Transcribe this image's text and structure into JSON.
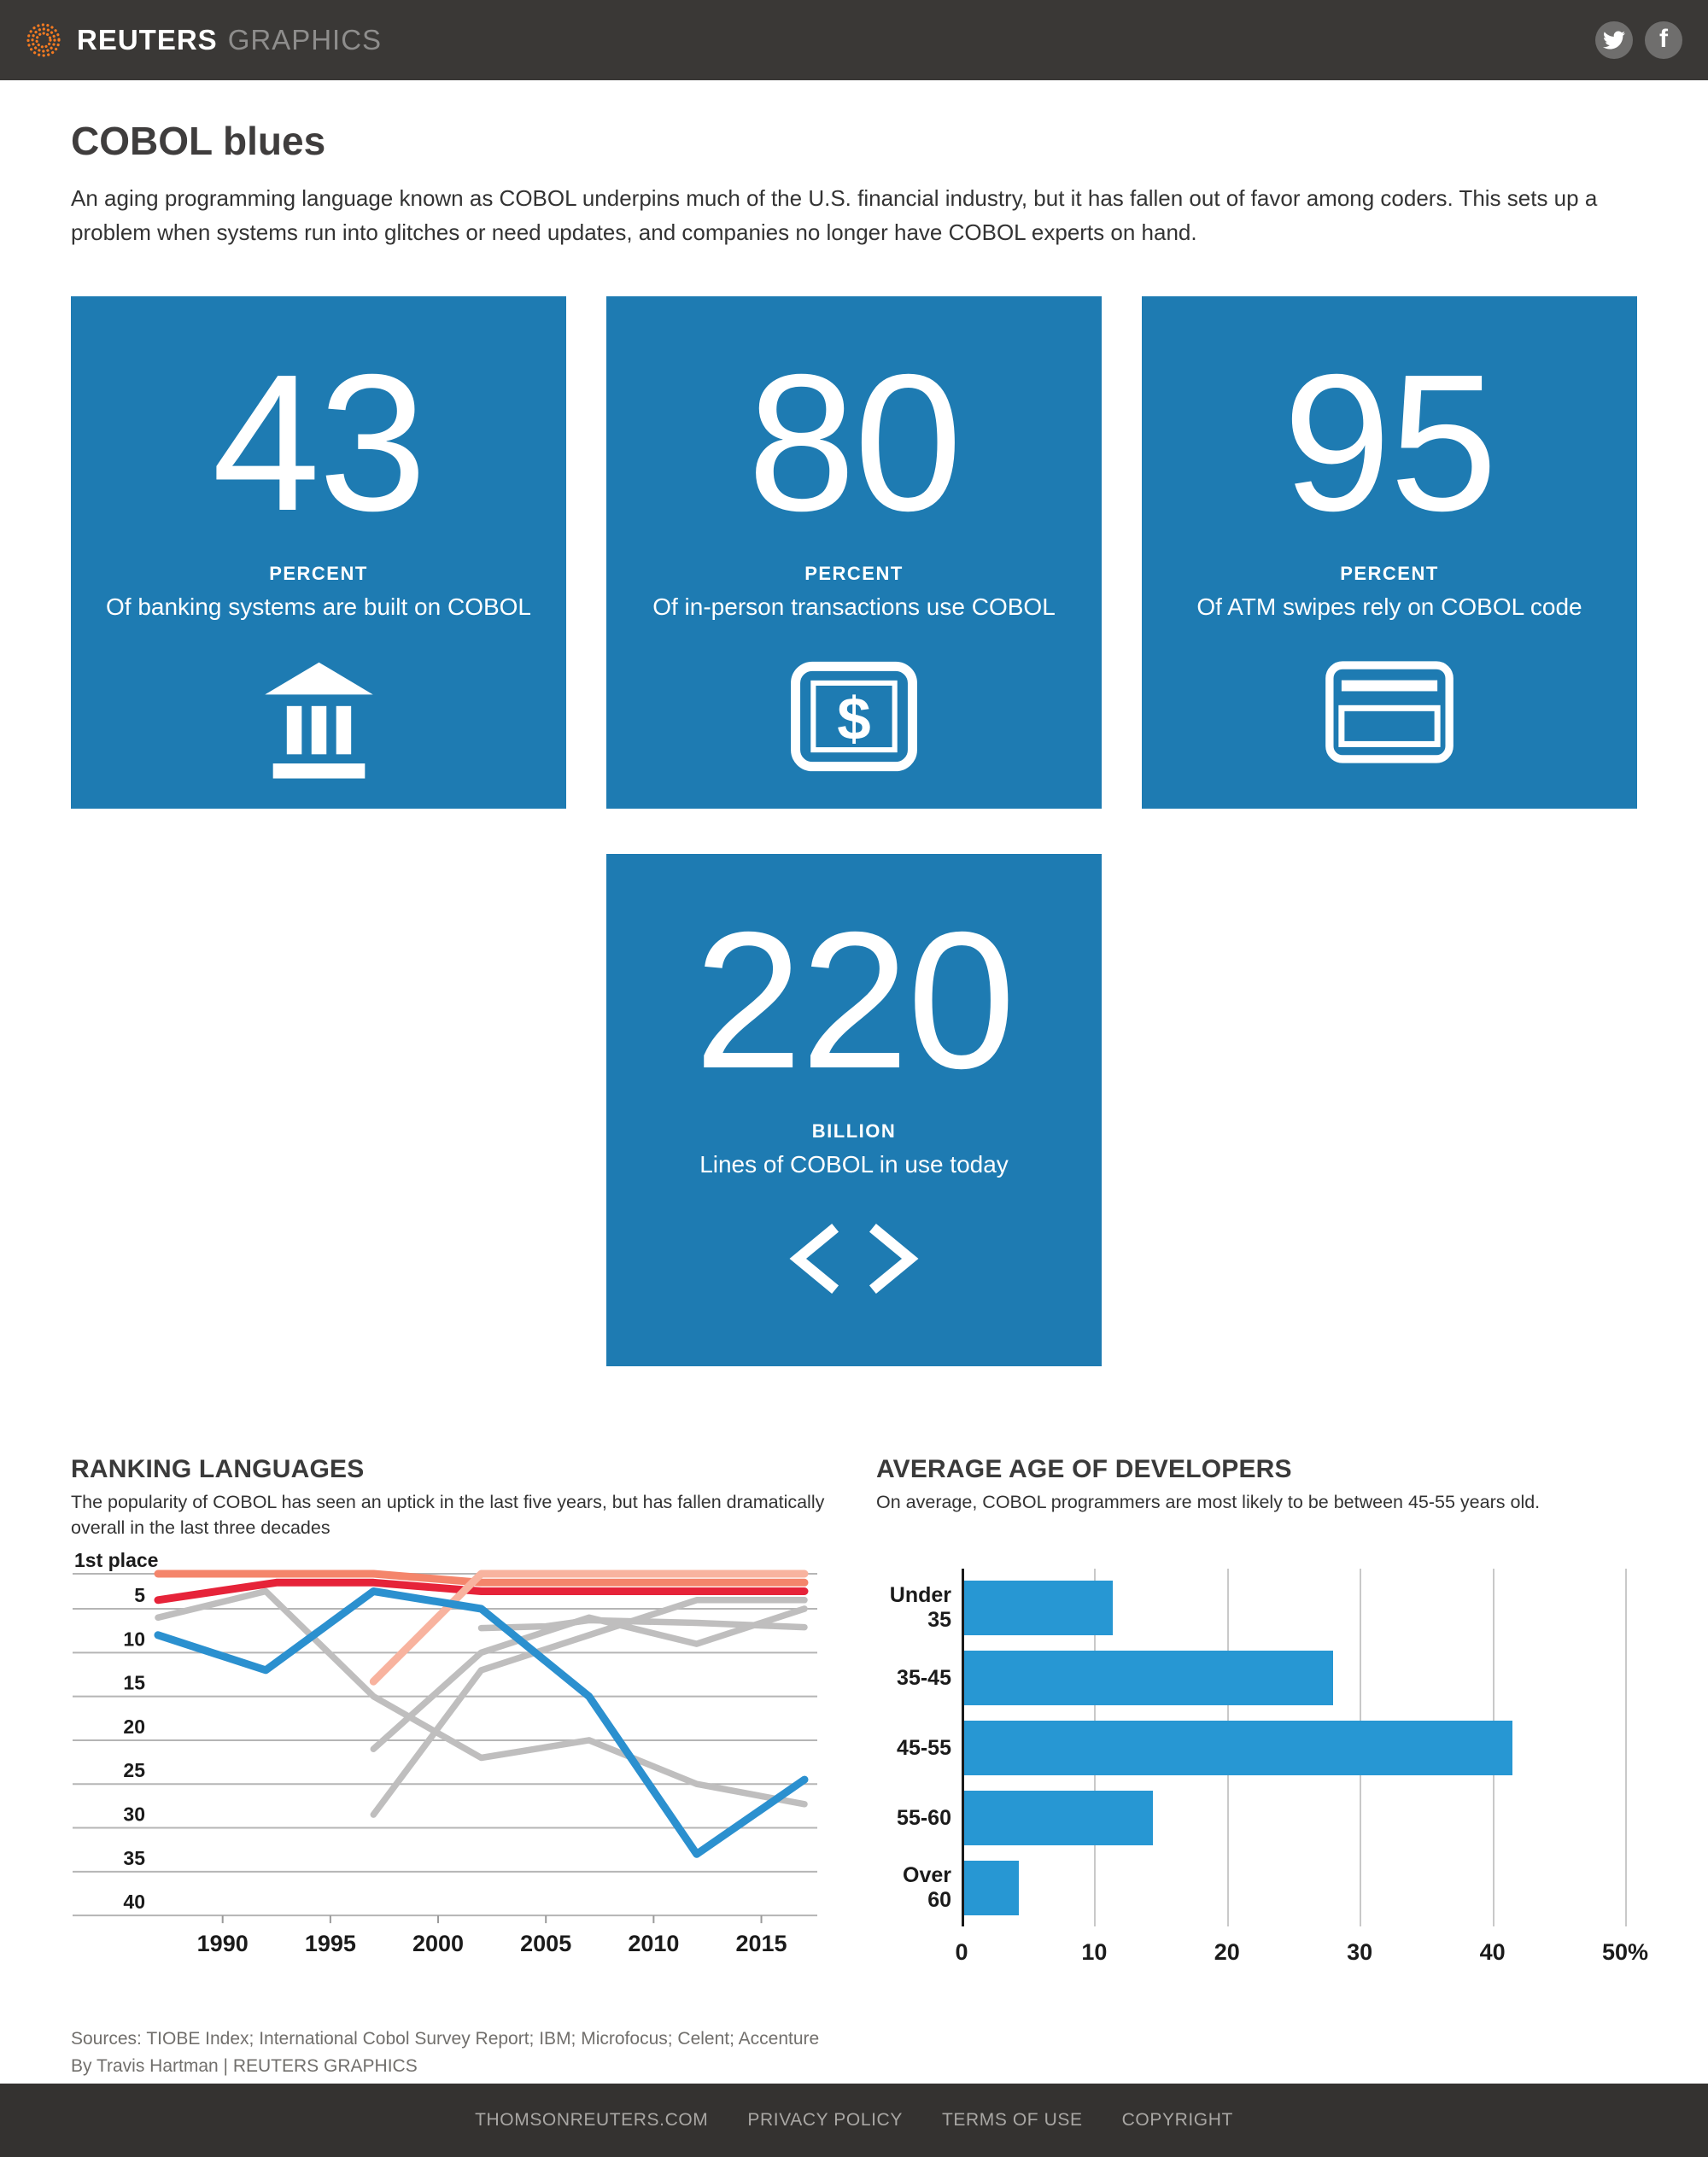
{
  "header": {
    "brand": "REUTERS",
    "brand_suffix": "GRAPHICS"
  },
  "article": {
    "title": "COBOL blues",
    "lede": "An aging programming language known as COBOL underpins much of the U.S. financial industry, but it has fallen out of favor among coders. This sets up a problem when systems run into glitches or need updates, and companies no longer have COBOL experts on hand."
  },
  "colors": {
    "card_blue": "#1e7bb2",
    "bar_blue": "#2797d3",
    "cobol_line_blue": "#2b90cf",
    "red_line": "#e62339",
    "salmon": "#f4856b",
    "light_salmon": "#f8b39f",
    "gray_line": "#bfbebe",
    "header_bg": "#3a3836",
    "footer_bg": "#343230",
    "logo_orange": "#f37a21"
  },
  "stat_cards": [
    {
      "value": "43",
      "unit": "PERCENT",
      "desc": "Of banking systems are built on COBOL",
      "icon": "bank-icon"
    },
    {
      "value": "80",
      "unit": "PERCENT",
      "desc": "Of in-person transactions use COBOL",
      "icon": "dollar-bill-icon"
    },
    {
      "value": "95",
      "unit": "PERCENT",
      "desc": "Of ATM swipes rely on COBOL code",
      "icon": "credit-card-icon"
    },
    {
      "value": "220",
      "unit": "BILLION",
      "desc": "Lines of COBOL in use today",
      "icon": "code-brackets-icon"
    }
  ],
  "charts": {
    "ranking": {
      "title": "RANKING LANGUAGES",
      "subtitle": "The popularity of COBOL has seen an uptick in the last five years, but has fallen dramatically overall in the last three decades",
      "chart_data": {
        "type": "line",
        "x_range": [
          1987,
          2017
        ],
        "y_range": [
          1,
          40
        ],
        "y_axis_inverted_rank": true,
        "grid": true,
        "legend": "none",
        "yticks": [
          {
            "label": "1st place",
            "value": 1
          },
          {
            "label": "5",
            "value": 5
          },
          {
            "label": "10",
            "value": 10
          },
          {
            "label": "15",
            "value": 15
          },
          {
            "label": "20",
            "value": 20
          },
          {
            "label": "25",
            "value": 25
          },
          {
            "label": "30",
            "value": 30
          },
          {
            "label": "35",
            "value": 35
          },
          {
            "label": "40",
            "value": 40
          }
        ],
        "xticks": [
          1990,
          1995,
          2000,
          2005,
          2010,
          2015
        ],
        "series": [
          {
            "name": "gray-language-1",
            "color": "#bfbebe",
            "width": 7.5,
            "x": [
              1987,
              1992,
              1997,
              2002,
              2007,
              2012,
              2017
            ],
            "ranks": [
              6,
              3,
              15,
              22,
              20,
              25,
              27.3
            ]
          },
          {
            "name": "gray-language-2",
            "color": "#bfbebe",
            "width": 7.5,
            "x": [
              1997,
              2002,
              2012,
              2017
            ],
            "ranks": [
              28.5,
              12,
              4,
              4
            ]
          },
          {
            "name": "gray-language-3",
            "color": "#bfbebe",
            "width": 7.5,
            "x": [
              1997,
              2002,
              2007,
              2012,
              2017
            ],
            "ranks": [
              21,
              10,
              6,
              9,
              5
            ]
          },
          {
            "name": "gray-language-4",
            "color": "#bfbebe",
            "width": 7.5,
            "x": [
              2002,
              2005,
              2007,
              2012,
              2017
            ],
            "ranks": [
              7.2,
              7,
              6.3,
              6.6,
              7.1
            ]
          },
          {
            "name": "salmon-leader",
            "color": "#f4856b",
            "width": 9,
            "x": [
              1987,
              1992,
              1997,
              2000,
              2002,
              2017
            ],
            "ranks": [
              1,
              1,
              1,
              1.6,
              2,
              2
            ]
          },
          {
            "name": "red-language",
            "color": "#e62339",
            "width": 9,
            "x": [
              1987,
              1992.5,
              1997,
              2002,
              2017
            ],
            "ranks": [
              4,
              2,
              2,
              3,
              3
            ]
          },
          {
            "name": "salmon-riser",
            "color": "#f8b39f",
            "width": 9,
            "x": [
              1997,
              2002,
              2017
            ],
            "ranks": [
              13.3,
              1,
              1
            ]
          },
          {
            "name": "cobol",
            "color": "#2b90cf",
            "width": 9,
            "x": [
              1987,
              1992,
              1997,
              2002,
              2007,
              2012,
              2017
            ],
            "ranks": [
              8,
              12,
              3,
              5,
              15,
              33,
              24.5
            ]
          }
        ]
      }
    },
    "ages": {
      "title": "AVERAGE AGE OF DEVELOPERS",
      "subtitle": "On average, COBOL programmers are most likely to be between 45-55 years old.",
      "chart_data": {
        "type": "bar",
        "orientation": "horizontal",
        "categories": [
          "Under 35",
          "35-45",
          "45-55",
          "55-60",
          "Over 60"
        ],
        "values": [
          11.4,
          28,
          41.5,
          14.4,
          4.3
        ],
        "xlim": [
          0,
          50
        ],
        "xtick_labels": [
          "0",
          "10",
          "20",
          "30",
          "40",
          "50%"
        ],
        "xtick_values": [
          0,
          10,
          20,
          30,
          40,
          50
        ],
        "bar_color": "#2797d3",
        "grid": true
      }
    }
  },
  "sources": {
    "line1": "Sources: TIOBE Index; International Cobol Survey Report; IBM; Microfocus; Celent; Accenture",
    "line2": "By Travis Hartman | REUTERS GRAPHICS"
  },
  "footer": {
    "links": [
      "THOMSONREUTERS.COM",
      "PRIVACY POLICY",
      "TERMS OF USE",
      "COPYRIGHT"
    ]
  }
}
